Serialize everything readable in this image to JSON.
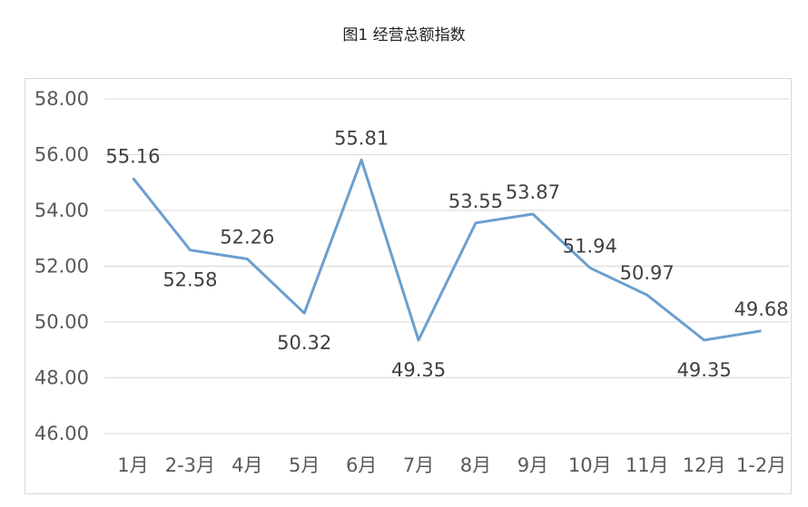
{
  "title": "图1 经营总额指数",
  "chart_data": {
    "type": "line",
    "title": "图1 经营总额指数",
    "categories": [
      "1月",
      "2-3月",
      "4月",
      "5月",
      "6月",
      "7月",
      "8月",
      "9月",
      "10月",
      "11月",
      "12月",
      "1-2月"
    ],
    "series": [
      {
        "values": [
          55.16,
          52.58,
          52.26,
          50.32,
          55.81,
          49.35,
          53.55,
          53.87,
          51.94,
          50.97,
          49.35,
          49.68
        ]
      }
    ],
    "data_labels": [
      "55.16",
      "52.58",
      "52.26",
      "50.32",
      "55.81",
      "49.35",
      "53.55",
      "53.87",
      "51.94",
      "50.97",
      "49.35",
      "49.68"
    ],
    "yticks": [
      "46.00",
      "48.00",
      "50.00",
      "52.00",
      "54.00",
      "56.00",
      "58.00"
    ],
    "ylim": [
      46,
      58
    ],
    "grid": true,
    "colors": {
      "line": "#6b9fcf",
      "grid": "#d9d9d9"
    }
  }
}
